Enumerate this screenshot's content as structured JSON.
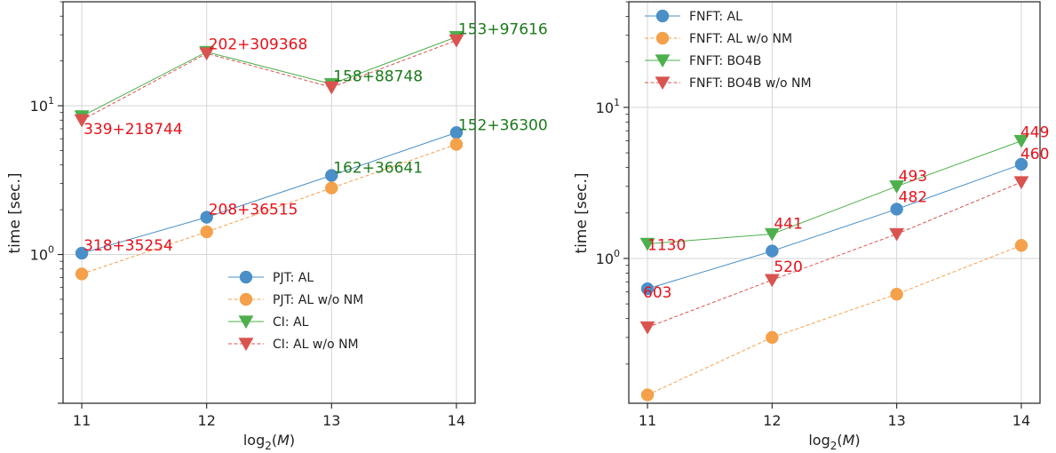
{
  "chart_data": [
    {
      "type": "line",
      "xlabel": "log2(M)",
      "ylabel": "time [sec.]",
      "yscale": "log",
      "ylim": [
        0.1,
        50
      ],
      "x": [
        11,
        12,
        13,
        14
      ],
      "xticks": [
        "11",
        "12",
        "13",
        "14"
      ],
      "yticks": [
        {
          "value": 1,
          "label": "10",
          "exp": "0"
        },
        {
          "value": 10,
          "label": "10",
          "exp": "1"
        }
      ],
      "grid": true,
      "legend_position": "lower-right",
      "series": [
        {
          "name": "PJT: AL",
          "values": [
            1.02,
            1.78,
            3.4,
            6.6
          ],
          "color": "#4a8fc7",
          "marker": "circle",
          "dash": false
        },
        {
          "name": "PJT: AL w/o NM",
          "values": [
            0.74,
            1.42,
            2.8,
            5.5
          ],
          "color": "#f5a04a",
          "marker": "circle",
          "dash": true
        },
        {
          "name": "CI: AL",
          "values": [
            8.5,
            23.0,
            14.0,
            29.0
          ],
          "color": "#4db04d",
          "marker": "triangle",
          "dash": false
        },
        {
          "name": "CI: AL w/o NM",
          "values": [
            8.0,
            22.5,
            13.3,
            27.5
          ],
          "color": "#d9534f",
          "marker": "triangle",
          "dash": true
        }
      ],
      "annotations": [
        {
          "text": "318+35254",
          "x": 11,
          "y": 1.02,
          "color": "#e8111b"
        },
        {
          "text": "208+36515",
          "x": 12,
          "y": 1.78,
          "color": "#e8111b"
        },
        {
          "text": "162+36641",
          "x": 13,
          "y": 3.4,
          "color": "#1b7a1b"
        },
        {
          "text": "152+36300",
          "x": 14,
          "y": 6.6,
          "color": "#1b7a1b"
        },
        {
          "text": "339+218744",
          "x": 11,
          "y": 8.5,
          "color": "#e8111b"
        },
        {
          "text": "202+309368",
          "x": 12,
          "y": 23.0,
          "color": "#e8111b"
        },
        {
          "text": "158+88748",
          "x": 13,
          "y": 14.0,
          "color": "#1b7a1b"
        },
        {
          "text": "153+97616",
          "x": 14,
          "y": 29.0,
          "color": "#1b7a1b"
        }
      ]
    },
    {
      "type": "line",
      "xlabel": "log2(M)",
      "ylabel": "time [sec.]",
      "yscale": "log",
      "ylim": [
        0.11,
        50
      ],
      "x": [
        11,
        12,
        13,
        14
      ],
      "xticks": [
        "11",
        "12",
        "13",
        "14"
      ],
      "yticks": [
        {
          "value": 1,
          "label": "10",
          "exp": "0"
        },
        {
          "value": 10,
          "label": "10",
          "exp": "1"
        }
      ],
      "grid": true,
      "legend_position": "upper-left",
      "series": [
        {
          "name": "FNFT: AL",
          "values": [
            0.63,
            1.12,
            2.12,
            4.2
          ],
          "color": "#4a8fc7",
          "marker": "circle",
          "dash": false
        },
        {
          "name": "FNFT: AL w/o NM",
          "values": [
            0.125,
            0.3,
            0.58,
            1.22
          ],
          "color": "#f5a04a",
          "marker": "circle",
          "dash": true
        },
        {
          "name": "FNFT: BO4B",
          "values": [
            1.25,
            1.45,
            3.0,
            6.0
          ],
          "color": "#4db04d",
          "marker": "triangle",
          "dash": false
        },
        {
          "name": "FNFT: BO4B w/o NM",
          "values": [
            0.35,
            0.72,
            1.45,
            3.2
          ],
          "color": "#d9534f",
          "marker": "triangle",
          "dash": true
        }
      ],
      "annotations": [
        {
          "text": "603",
          "x": 11,
          "y": 0.63,
          "color": "#e8111b"
        },
        {
          "text": "1130",
          "x": 11,
          "y": 1.25,
          "color": "#e8111b"
        },
        {
          "text": "441",
          "x": 12,
          "y": 1.45,
          "color": "#e8111b"
        },
        {
          "text": "520",
          "x": 12,
          "y": 0.72,
          "color": "#e8111b"
        },
        {
          "text": "493",
          "x": 13,
          "y": 3.0,
          "color": "#e8111b"
        },
        {
          "text": "482",
          "x": 13,
          "y": 2.12,
          "color": "#e8111b"
        },
        {
          "text": "449",
          "x": 14,
          "y": 6.0,
          "color": "#e8111b"
        },
        {
          "text": "460",
          "x": 14,
          "y": 4.2,
          "color": "#e8111b"
        }
      ]
    }
  ]
}
